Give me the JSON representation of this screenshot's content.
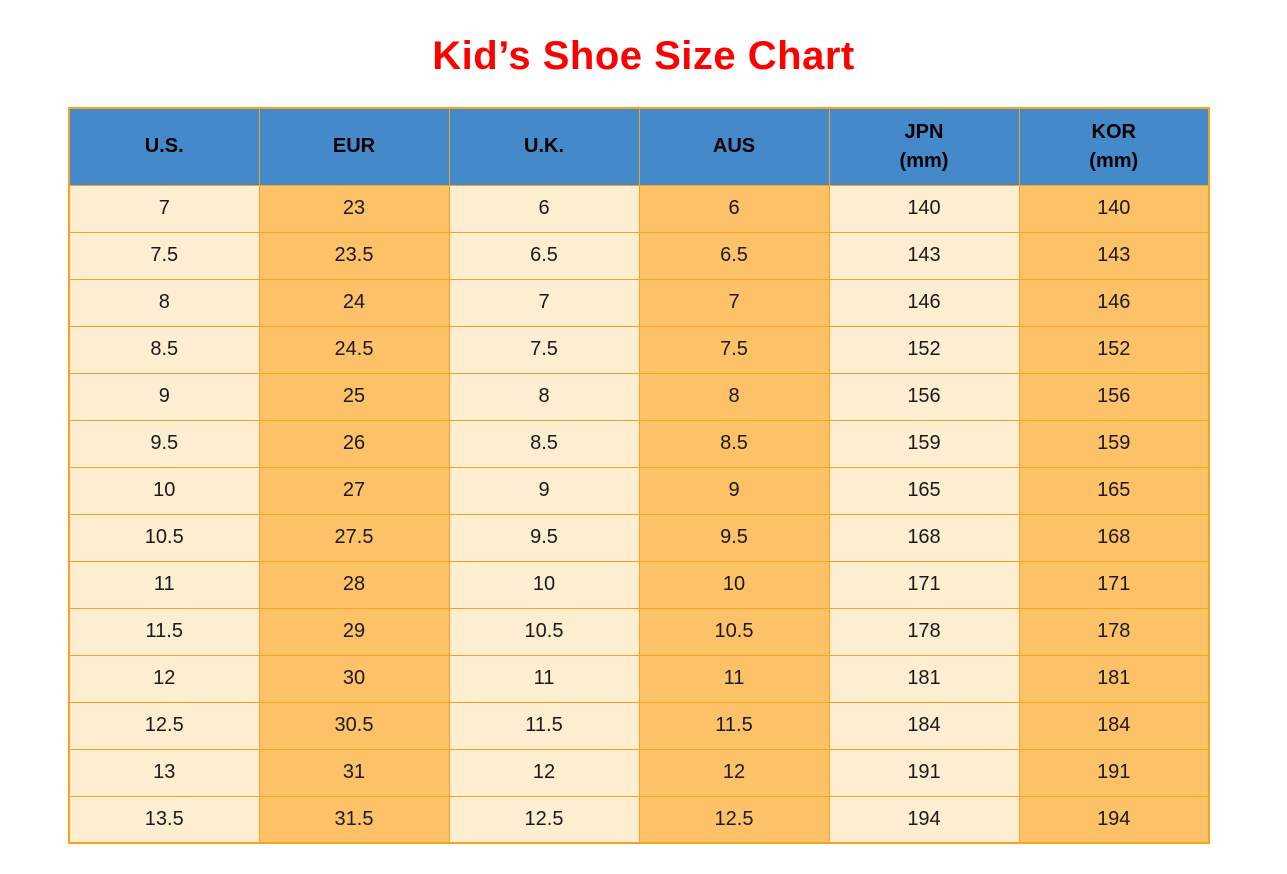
{
  "page": {
    "title": "Kid’s Shoe Size Chart"
  },
  "colors": {
    "title": "#ff0000",
    "header_bg": "#4489c9",
    "border": "#f9a21e",
    "cell_light": "#fdedd1",
    "cell_orange": "#fdc167",
    "header_text": "#000000",
    "body_text": "#1a1a1a"
  },
  "chart_data": {
    "type": "table",
    "title": "Kid’s Shoe Size Chart",
    "columns": [
      {
        "label": "U.S.",
        "sub": ""
      },
      {
        "label": "EUR",
        "sub": ""
      },
      {
        "label": "U.K.",
        "sub": ""
      },
      {
        "label": "AUS",
        "sub": ""
      },
      {
        "label": "JPN",
        "sub": "(mm)"
      },
      {
        "label": "KOR",
        "sub": "(mm)"
      }
    ],
    "rows": [
      [
        "7",
        "23",
        "6",
        "6",
        "140",
        "140"
      ],
      [
        "7.5",
        "23.5",
        "6.5",
        "6.5",
        "143",
        "143"
      ],
      [
        "8",
        "24",
        "7",
        "7",
        "146",
        "146"
      ],
      [
        "8.5",
        "24.5",
        "7.5",
        "7.5",
        "152",
        "152"
      ],
      [
        "9",
        "25",
        "8",
        "8",
        "156",
        "156"
      ],
      [
        "9.5",
        "26",
        "8.5",
        "8.5",
        "159",
        "159"
      ],
      [
        "10",
        "27",
        "9",
        "9",
        "165",
        "165"
      ],
      [
        "10.5",
        "27.5",
        "9.5",
        "9.5",
        "168",
        "168"
      ],
      [
        "11",
        "28",
        "10",
        "10",
        "171",
        "171"
      ],
      [
        "11.5",
        "29",
        "10.5",
        "10.5",
        "178",
        "178"
      ],
      [
        "12",
        "30",
        "11",
        "11",
        "181",
        "181"
      ],
      [
        "12.5",
        "30.5",
        "11.5",
        "11.5",
        "184",
        "184"
      ],
      [
        "13",
        "31",
        "12",
        "12",
        "191",
        "191"
      ],
      [
        "13.5",
        "31.5",
        "12.5",
        "12.5",
        "194",
        "194"
      ]
    ]
  }
}
